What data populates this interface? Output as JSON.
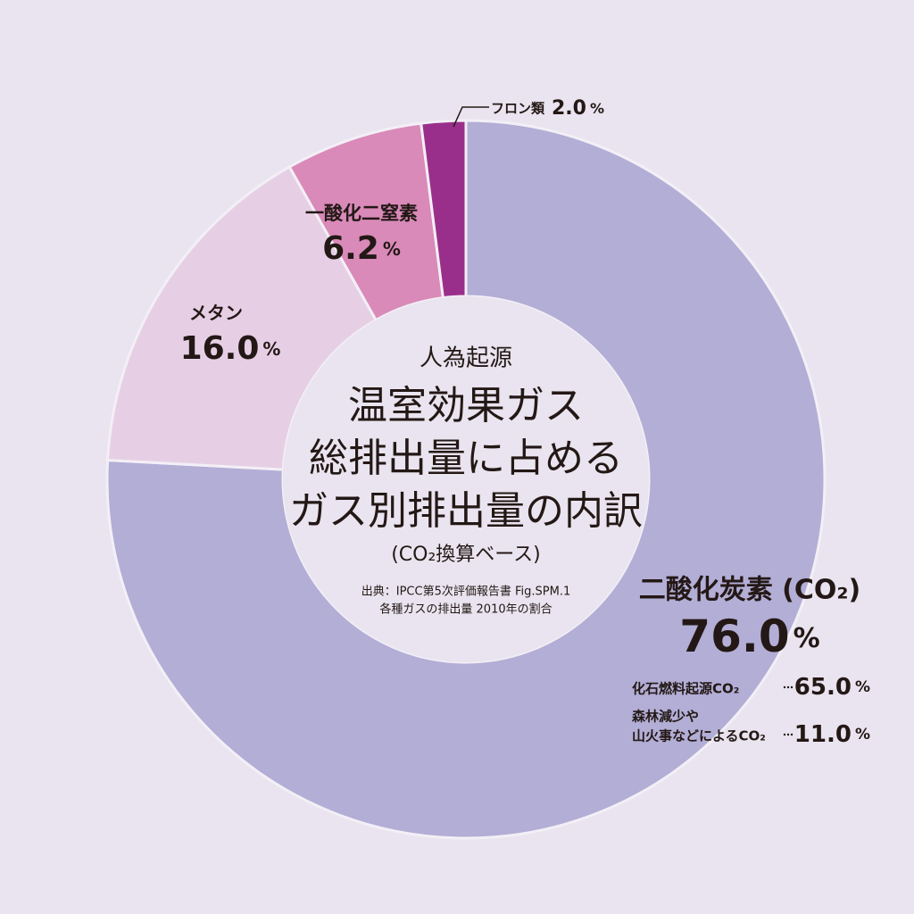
{
  "chart_data": {
    "type": "donut",
    "title_lines": [
      "人為起源",
      "温室効果ガス",
      "総排出量に占める",
      "ガス別排出量の内訳"
    ],
    "subtitle": "(CO₂換算ベース)",
    "source_lines": [
      "出典：IPCC第5次評価報告書 Fig.SPM.1",
      "各種ガスの排出量 2010年の割合"
    ],
    "categories": [
      "二酸化炭素 (CO₂)",
      "メタン",
      "一酸化二窒素",
      "フロン類"
    ],
    "values": [
      76.0,
      16.0,
      6.2,
      2.0
    ],
    "value_labels": [
      "76.0%",
      "16.0%",
      "6.2%",
      "2.0%"
    ],
    "colors": [
      "#b3aed6",
      "#e6cfe4",
      "#d98ab9",
      "#9a2f8b"
    ],
    "breakdown": [
      {
        "label_lines": [
          "化石燃料起源CO₂"
        ],
        "value": 65.0,
        "value_label": "65.0%"
      },
      {
        "label_lines": [
          "森林減少や",
          "山火事などによるCO₂"
        ],
        "value": 11.0,
        "value_label": "11.0%"
      }
    ]
  }
}
